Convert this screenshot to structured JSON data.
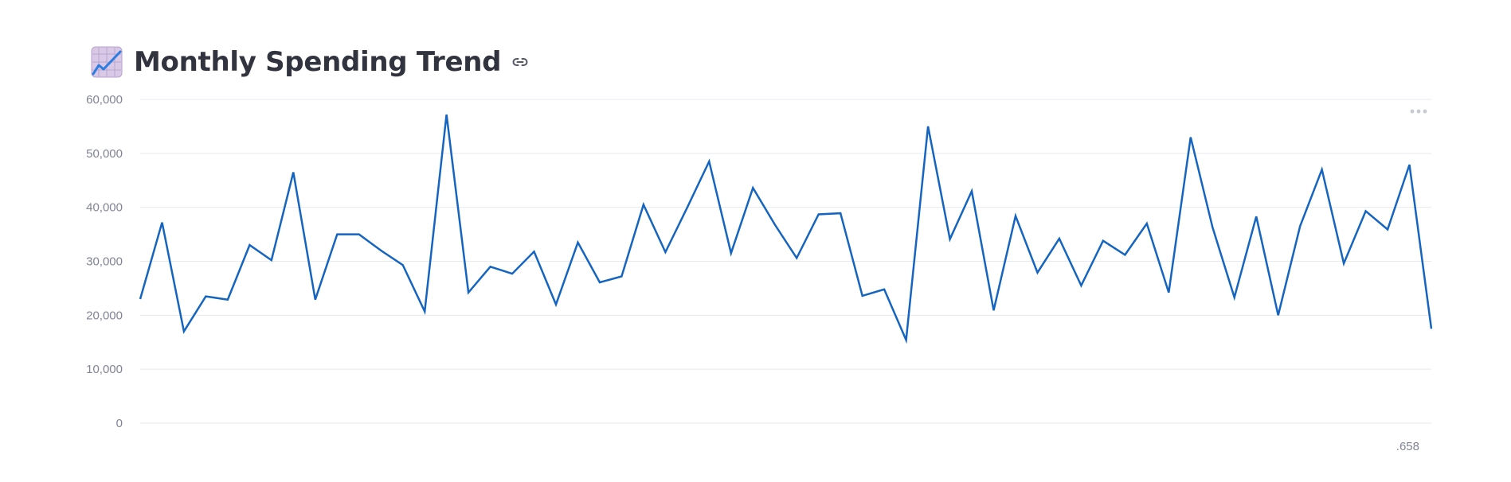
{
  "header": {
    "title": "Monthly Spending Trend",
    "emoji_icon": "chart-increasing-icon",
    "link_icon": "link-icon"
  },
  "toolbar": {
    "menu_icon": "more-horizontal-icon"
  },
  "colors": {
    "line": "#1565c0",
    "grid": "#e6e9ef",
    "tick_text": "#808495",
    "title": "#31333f"
  },
  "chart_data": {
    "type": "line",
    "title": "",
    "xlabel": "",
    "ylabel": "",
    "ylim": [
      0,
      60000
    ],
    "y_ticks": [
      "0",
      "10,000",
      "20,000",
      "30,000",
      "40,000",
      "50,000",
      "60,000"
    ],
    "x_tick_label": ".658",
    "grid": true,
    "series": [
      {
        "values": [
          23000,
          37200,
          17000,
          23500,
          22900,
          33000,
          30200,
          46500,
          22900,
          35000,
          35000,
          32000,
          29300,
          20700,
          57200,
          24200,
          29000,
          27700,
          31800,
          22000,
          33500,
          26100,
          27200,
          40500,
          31700,
          40000,
          48500,
          31500,
          43600,
          36800,
          30600,
          38700,
          38900,
          23600,
          24800,
          15400,
          55000,
          34100,
          43000,
          20900,
          38400,
          27900,
          34200,
          25500,
          33800,
          31200,
          37000,
          24200,
          53000,
          36300,
          23300,
          38300,
          20000,
          36500,
          47000,
          29600,
          39300,
          35900,
          47900,
          17500
        ]
      }
    ]
  }
}
